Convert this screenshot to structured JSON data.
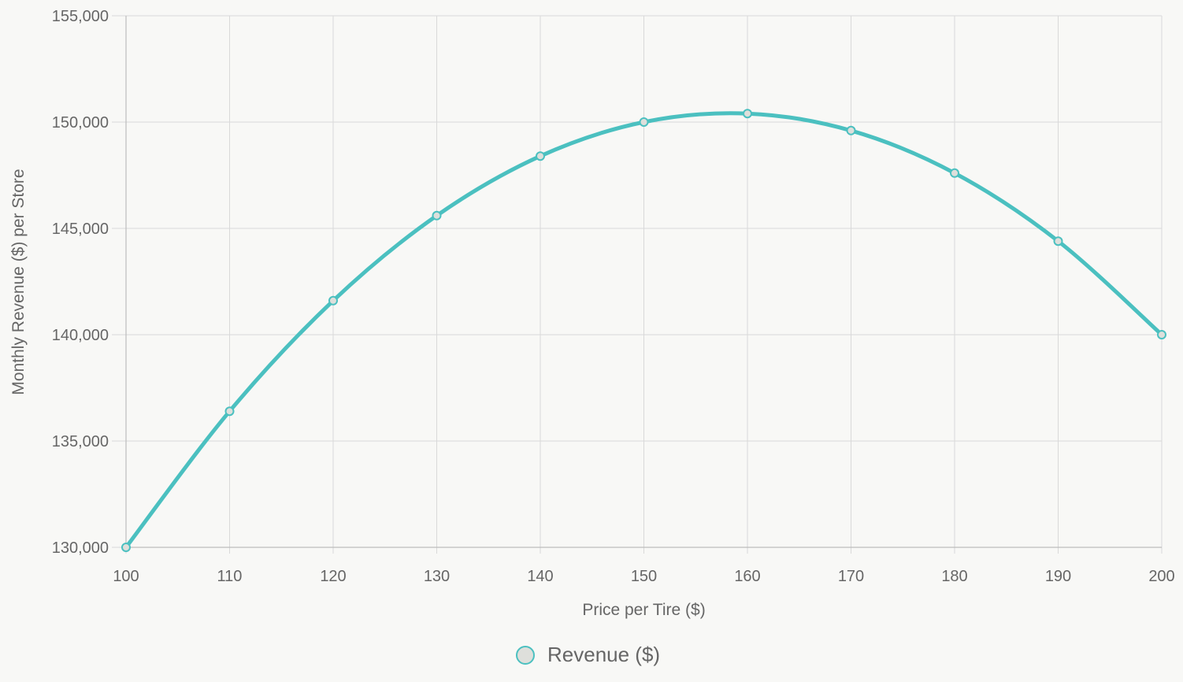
{
  "chart_data": {
    "type": "line",
    "xlabel": "Price per Tire ($)",
    "ylabel": "Monthly Revenue ($) per Store",
    "x": [
      100,
      110,
      120,
      130,
      140,
      150,
      160,
      170,
      180,
      190,
      200
    ],
    "xlim": [
      100,
      200
    ],
    "ylim": [
      130000,
      155000
    ],
    "x_ticks": [
      100,
      110,
      120,
      130,
      140,
      150,
      160,
      170,
      180,
      190,
      200
    ],
    "y_ticks": [
      130000,
      135000,
      140000,
      145000,
      150000,
      155000
    ],
    "y_tick_labels": [
      "130,000",
      "135,000",
      "140,000",
      "145,000",
      "150,000",
      "155,000"
    ],
    "grid": true,
    "legend_position": "bottom",
    "series": [
      {
        "name": "Revenue ($)",
        "color": "#4bc0c0",
        "marker_fill": "#dedfdb",
        "values": [
          130000,
          136400,
          141600,
          145600,
          148400,
          150000,
          150400,
          149600,
          147600,
          144400,
          140000
        ]
      }
    ]
  }
}
